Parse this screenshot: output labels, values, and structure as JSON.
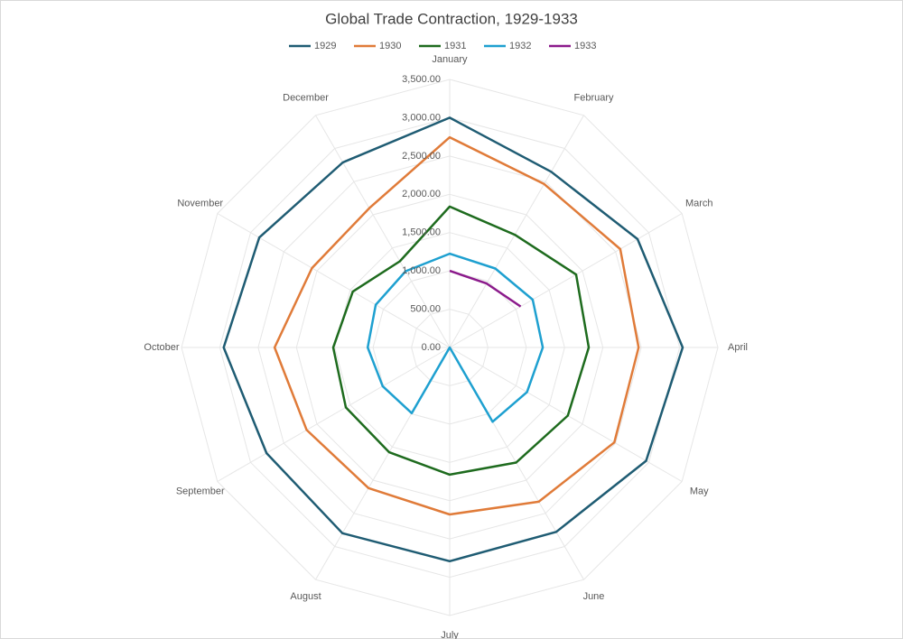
{
  "chart_data": {
    "type": "radar",
    "title": "Global Trade Contraction, 1929-1933",
    "categories": [
      "January",
      "February",
      "March",
      "April",
      "May",
      "June",
      "July",
      "August",
      "September",
      "October",
      "November",
      "December"
    ],
    "series": [
      {
        "name": "1929",
        "color": "#1f5c73",
        "values": [
          3000,
          2650,
          2830,
          3040,
          2960,
          2780,
          2790,
          2800,
          2760,
          2950,
          2870,
          2790
        ]
      },
      {
        "name": "1930",
        "color": "#e07b39",
        "values": [
          2745,
          2465,
          2570,
          2465,
          2480,
          2325,
          2180,
          2120,
          2155,
          2285,
          2075,
          2100
        ]
      },
      {
        "name": "1931",
        "color": "#1e6b1e",
        "values": [
          1840,
          1700,
          1905,
          1815,
          1780,
          1735,
          1660,
          1580,
          1565,
          1520,
          1460,
          1300
        ]
      },
      {
        "name": "1932",
        "color": "#1ea0d0",
        "values": [
          1225,
          1190,
          1250,
          1215,
          1165,
          1120,
          0,
          990,
          1010,
          1070,
          1115,
          1150
        ]
      },
      {
        "name": "1933",
        "color": "#8b1a8b",
        "values": [
          1000,
          965,
          1070,
          null,
          null,
          null,
          null,
          null,
          null,
          null,
          null,
          null
        ]
      }
    ],
    "ylim": [
      0,
      3500
    ],
    "yticks": [
      {
        "value": 0,
        "label": "0.00"
      },
      {
        "value": 500,
        "label": "500.00"
      },
      {
        "value": 1000,
        "label": "1,000.00"
      },
      {
        "value": 1500,
        "label": "1,500.00"
      },
      {
        "value": 2000,
        "label": "2,000.00"
      },
      {
        "value": 2500,
        "label": "2,500.00"
      },
      {
        "value": 3000,
        "label": "3,000.00"
      },
      {
        "value": 3500,
        "label": "3,500.00"
      }
    ],
    "grid": true,
    "legend": "top"
  }
}
